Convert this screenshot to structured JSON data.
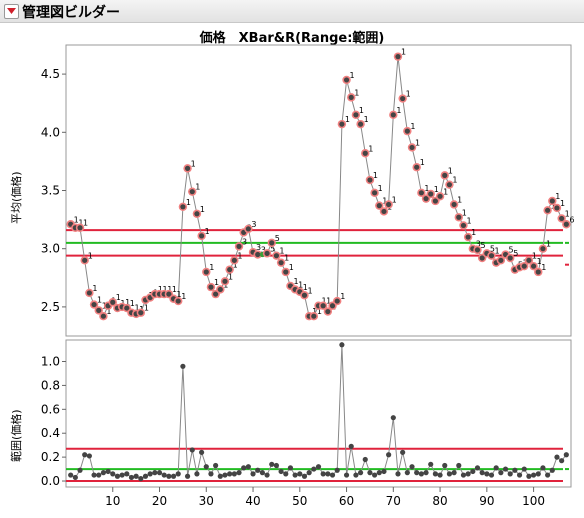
{
  "header": {
    "title": "管理図ビルダー",
    "menu_icon": "red-triangle-menu-icon"
  },
  "chart_data": [
    {
      "type": "line",
      "title": "価格　XBar&R(Range:範囲)",
      "ylabel": "平均(価格)",
      "ylim": [
        2.25,
        4.75
      ],
      "xlim": [
        0,
        108
      ],
      "yticks": [
        2.5,
        3.0,
        3.5,
        4.0,
        4.5
      ],
      "ytick_labels": [
        "2.5",
        "3.0",
        "3.5",
        "4.0",
        "4.5"
      ],
      "center_line": 3.05,
      "ucl": 3.16,
      "lcl": 2.94,
      "colors": {
        "line": "#888888",
        "points": "#444444",
        "limits": "#e0233c",
        "center": "#22bb22",
        "highlight": "#f08080"
      },
      "x": [
        1,
        2,
        3,
        4,
        5,
        6,
        7,
        8,
        9,
        10,
        11,
        12,
        13,
        14,
        15,
        16,
        17,
        18,
        19,
        20,
        21,
        22,
        23,
        24,
        25,
        26,
        27,
        28,
        29,
        30,
        31,
        32,
        33,
        34,
        35,
        36,
        37,
        38,
        39,
        40,
        41,
        42,
        43,
        44,
        45,
        46,
        47,
        48,
        49,
        50,
        51,
        52,
        53,
        54,
        55,
        56,
        57,
        58,
        59,
        60,
        61,
        62,
        63,
        64,
        65,
        66,
        67,
        68,
        69,
        70,
        71,
        72,
        73,
        74,
        75,
        76,
        77,
        78,
        79,
        80,
        81,
        82,
        83,
        84,
        85,
        86,
        87,
        88,
        89,
        90,
        91,
        92,
        93,
        94,
        95,
        96,
        97,
        98,
        99,
        100,
        101,
        102,
        103,
        104,
        105,
        106,
        107
      ],
      "values": [
        3.21,
        3.18,
        3.18,
        2.9,
        2.62,
        2.52,
        2.47,
        2.42,
        2.51,
        2.54,
        2.49,
        2.5,
        2.49,
        2.45,
        2.44,
        2.45,
        2.56,
        2.58,
        2.61,
        2.61,
        2.61,
        2.61,
        2.57,
        2.55,
        3.36,
        3.69,
        3.49,
        3.3,
        3.11,
        2.8,
        2.67,
        2.61,
        2.65,
        2.72,
        2.82,
        2.9,
        3.02,
        3.14,
        3.17,
        2.97,
        2.95,
        2.95,
        2.96,
        3.05,
        2.94,
        2.88,
        2.8,
        2.68,
        2.65,
        2.63,
        2.6,
        2.42,
        2.42,
        2.51,
        2.51,
        2.46,
        2.51,
        2.55,
        4.07,
        4.45,
        4.3,
        4.15,
        4.07,
        3.82,
        3.59,
        3.48,
        3.37,
        3.32,
        3.38,
        4.15,
        4.65,
        4.29,
        4.01,
        3.87,
        3.7,
        3.48,
        3.43,
        3.47,
        3.41,
        3.45,
        3.63,
        3.55,
        3.38,
        3.27,
        3.2,
        3.1,
        3.0,
        2.99,
        2.92,
        2.96,
        2.94,
        2.88,
        2.9,
        2.95,
        2.92,
        2.82,
        2.84,
        2.85,
        2.9,
        2.85,
        2.8,
        3.0,
        3.33,
        3.41,
        3.35,
        3.26,
        3.21
      ],
      "flags": [
        "1",
        "1",
        "1",
        "1",
        "1",
        "1",
        "1",
        "1",
        "1",
        "1",
        "1",
        "1",
        "1",
        "1",
        "1",
        "1",
        "1",
        "1",
        "1",
        "1",
        "1",
        "1",
        "1",
        "1",
        "1",
        "1",
        "1",
        "1",
        "1",
        "1",
        "1",
        "1",
        "1",
        "1",
        "1",
        "1",
        "3",
        "3",
        "3",
        "3",
        "3",
        "",
        "5",
        "5",
        "1",
        "1",
        "1",
        "1",
        "1",
        "1",
        "1",
        "1",
        "1",
        "1",
        "1",
        "1",
        "1",
        "1",
        "1",
        "1",
        "1",
        "1",
        "1",
        "1",
        "1",
        "1",
        "1",
        "1",
        "1",
        "1",
        "1",
        "1",
        "1",
        "1",
        "1",
        "1",
        "1",
        "1",
        "1",
        "1",
        "1",
        "1",
        "1",
        "1",
        "1",
        "1",
        "3",
        "5",
        "5",
        "5",
        "1",
        "1",
        "5",
        "5",
        "5",
        "5",
        "1",
        "1",
        "1",
        "1",
        "1",
        "1",
        "1",
        "1",
        "1",
        "1",
        "6"
      ]
    },
    {
      "type": "line",
      "ylabel": "範囲(価格)",
      "ylim": [
        -0.05,
        1.18
      ],
      "yticks": [
        0.0,
        0.2,
        0.4,
        0.6,
        0.8,
        1.0
      ],
      "ytick_labels": [
        "0.0",
        "0.2",
        "0.4",
        "0.6",
        "0.8",
        "1.0"
      ],
      "xticks": [
        10,
        20,
        30,
        40,
        50,
        60,
        70,
        80,
        90,
        100
      ],
      "xtick_labels": [
        "10",
        "20",
        "30",
        "40",
        "50",
        "60",
        "70",
        "80",
        "90",
        "100"
      ],
      "center_line": 0.1,
      "ucl": 0.27,
      "lcl": 0.0,
      "x": [
        1,
        2,
        3,
        4,
        5,
        6,
        7,
        8,
        9,
        10,
        11,
        12,
        13,
        14,
        15,
        16,
        17,
        18,
        19,
        20,
        21,
        22,
        23,
        24,
        25,
        26,
        27,
        28,
        29,
        30,
        31,
        32,
        33,
        34,
        35,
        36,
        37,
        38,
        39,
        40,
        41,
        42,
        43,
        44,
        45,
        46,
        47,
        48,
        49,
        50,
        51,
        52,
        53,
        54,
        55,
        56,
        57,
        58,
        59,
        60,
        61,
        62,
        63,
        64,
        65,
        66,
        67,
        68,
        69,
        70,
        71,
        72,
        73,
        74,
        75,
        76,
        77,
        78,
        79,
        80,
        81,
        82,
        83,
        84,
        85,
        86,
        87,
        88,
        89,
        90,
        91,
        92,
        93,
        94,
        95,
        96,
        97,
        98,
        99,
        100,
        101,
        102,
        103,
        104,
        105,
        106,
        107
      ],
      "values": [
        0.05,
        0.03,
        0.09,
        0.22,
        0.21,
        0.05,
        0.05,
        0.07,
        0.08,
        0.06,
        0.04,
        0.05,
        0.06,
        0.03,
        0.04,
        0.02,
        0.04,
        0.06,
        0.07,
        0.07,
        0.05,
        0.04,
        0.04,
        0.06,
        0.96,
        0.04,
        0.26,
        0.06,
        0.24,
        0.12,
        0.06,
        0.13,
        0.04,
        0.05,
        0.06,
        0.06,
        0.07,
        0.11,
        0.12,
        0.06,
        0.09,
        0.07,
        0.05,
        0.14,
        0.13,
        0.08,
        0.06,
        0.11,
        0.05,
        0.06,
        0.04,
        0.07,
        0.1,
        0.12,
        0.06,
        0.06,
        0.05,
        0.09,
        1.14,
        0.05,
        0.29,
        0.05,
        0.07,
        0.18,
        0.07,
        0.05,
        0.07,
        0.08,
        0.22,
        0.53,
        0.06,
        0.24,
        0.07,
        0.12,
        0.07,
        0.06,
        0.07,
        0.14,
        0.06,
        0.05,
        0.13,
        0.06,
        0.07,
        0.13,
        0.05,
        0.06,
        0.08,
        0.11,
        0.07,
        0.06,
        0.05,
        0.11,
        0.07,
        0.1,
        0.06,
        0.09,
        0.05,
        0.1,
        0.04,
        0.05,
        0.06,
        0.11,
        0.05,
        0.09,
        0.2,
        0.17,
        0.22
      ]
    }
  ]
}
